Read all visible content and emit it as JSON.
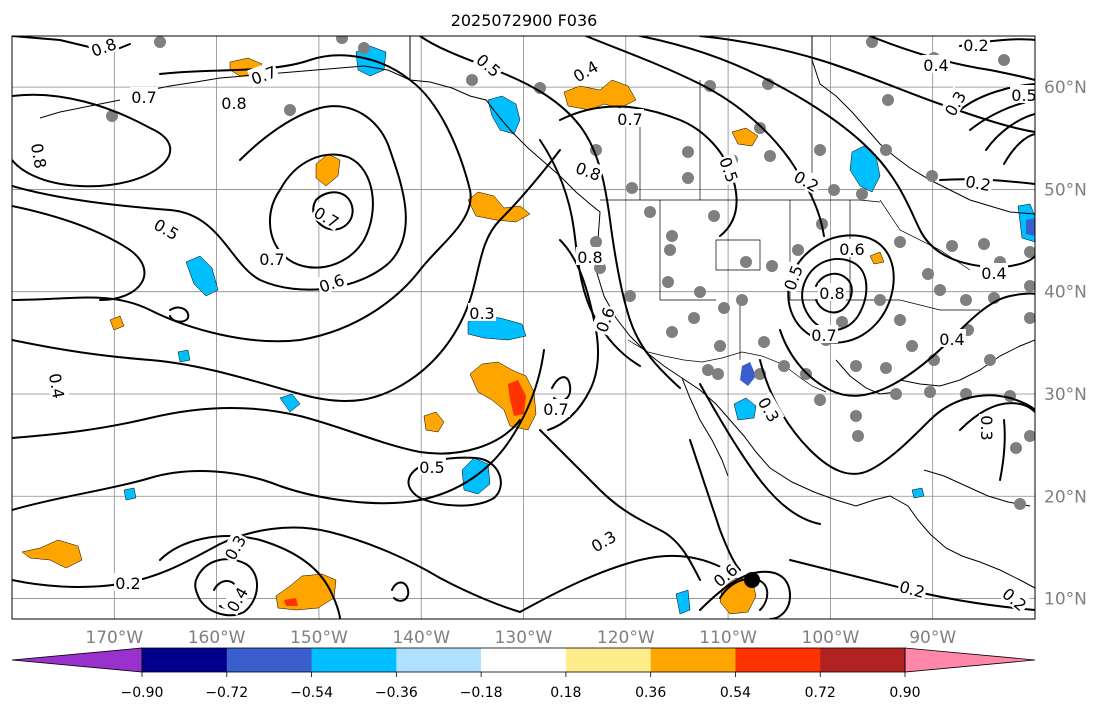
{
  "title": "2025072900 F036",
  "map": {
    "lon_ticks": [
      "170°W",
      "160°W",
      "150°W",
      "140°W",
      "130°W",
      "120°W",
      "110°W",
      "100°W",
      "90°W"
    ],
    "lat_ticks": [
      "60°N",
      "50°N",
      "40°N",
      "30°N",
      "20°N",
      "10°N"
    ],
    "lon_range": [
      -180,
      -80
    ],
    "lat_range": [
      8,
      65
    ],
    "grid": true
  },
  "colorbar": {
    "levels": [
      -0.9,
      -0.72,
      -0.54,
      -0.36,
      -0.18,
      0.18,
      0.36,
      0.54,
      0.72,
      0.9
    ],
    "tick_labels": [
      "−0.90",
      "−0.72",
      "−0.54",
      "−0.36",
      "−0.18",
      "0.18",
      "0.36",
      "0.54",
      "0.72",
      "0.90"
    ],
    "colors": [
      "#9932cc",
      "#00008b",
      "#3a5fcd",
      "#00bfff",
      "#b0e2ff",
      "#ffffff",
      "#ffec8b",
      "#ffa500",
      "#ff3300",
      "#b22222",
      "#ff88aa"
    ],
    "extend": "both"
  },
  "contour_labels": [
    "0.8",
    "0.7",
    "0.8",
    "0.7",
    "0.8",
    "0.8",
    "0.5",
    "0.7",
    "0.6",
    "0.4",
    "0.3",
    "0.7",
    "0.5",
    "0.3",
    "0.2",
    "0.3",
    "0.4",
    "0.8",
    "0.6",
    "0.7",
    "0.4",
    "0.5",
    "0.7",
    "0.8",
    "0.5",
    "0.2",
    "0.6",
    "0.5",
    "0.7",
    "0.4",
    "0.3",
    "0.3",
    "0.2",
    "0.6",
    "0.4",
    "0.5",
    "0.4",
    "0.2",
    "0.3",
    "0.2",
    "0.2"
  ]
}
